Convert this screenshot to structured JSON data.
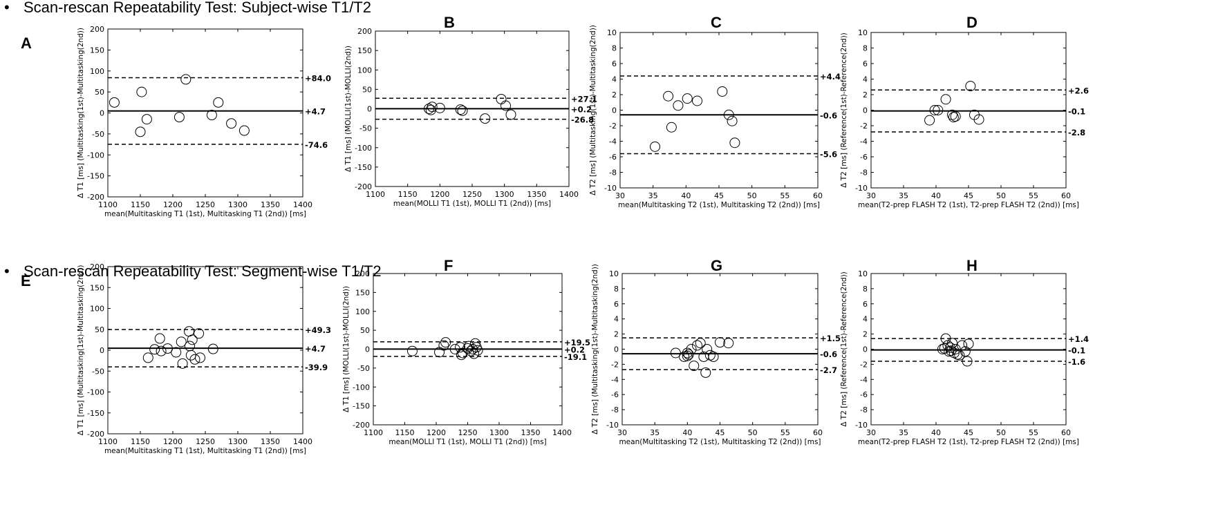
{
  "header": {
    "section1": "Scan-rescan Repeatability Test: Subject-wise T1/T2",
    "section2": "Scan-rescan Repeatability Test: Segment-wise T1/T2",
    "bullet": "•"
  },
  "colors": {
    "ink": "#000000",
    "background": "#ffffff"
  },
  "chart_data": [
    {
      "panel": "A",
      "type": "scatter",
      "xlabel": "mean(Multitasking T1 (1st), Multitasking T1 (2nd)) [ms]",
      "ylabel": "Δ T1 [ms] (Multitasking(1st)-Multitasking(2nd))",
      "xlim": [
        1100,
        1400
      ],
      "ylim": [
        -200,
        200
      ],
      "xticks": [
        1100,
        1150,
        1200,
        1250,
        1300,
        1350,
        1400
      ],
      "yticks": [
        -200,
        -150,
        -100,
        -50,
        0,
        50,
        100,
        150,
        200
      ],
      "x": [
        1110,
        1150,
        1152,
        1160,
        1210,
        1220,
        1260,
        1270,
        1290,
        1310
      ],
      "y": [
        25,
        -45,
        50,
        -15,
        -10,
        80,
        -5,
        25,
        -25,
        -42
      ],
      "mean_line": 4.7,
      "upper_loa": 84.0,
      "lower_loa": -74.6,
      "labels": {
        "mean": "+4.7",
        "upper": "+84.0",
        "lower": "-74.6"
      }
    },
    {
      "panel": "B",
      "type": "scatter",
      "xlabel": "mean(MOLLI T1 (1st), MOLLI T1 (2nd)) [ms]",
      "ylabel": "Δ T1 [ms] (MOLLI(1st)-MOLLI(2nd))",
      "xlim": [
        1100,
        1400
      ],
      "ylim": [
        -200,
        200
      ],
      "xticks": [
        1100,
        1150,
        1200,
        1250,
        1300,
        1350,
        1400
      ],
      "yticks": [
        -200,
        -150,
        -100,
        -50,
        0,
        50,
        100,
        150,
        200
      ],
      "x": [
        1183,
        1186,
        1188,
        1200,
        1232,
        1235,
        1270,
        1295,
        1302,
        1310
      ],
      "y": [
        0,
        -3,
        5,
        2,
        -2,
        -5,
        -25,
        25,
        8,
        -15
      ],
      "mean_line": 0.2,
      "upper_loa": 27.1,
      "lower_loa": -26.8,
      "labels": {
        "mean": "+0.2",
        "upper": "+27.1",
        "lower": "-26.8"
      }
    },
    {
      "panel": "C",
      "type": "scatter",
      "xlabel": "mean(Multitasking T2 (1st), Multitasking T2 (2nd)) [ms]",
      "ylabel": "Δ T2 [ms] (Multitasking(1st)-Multitasking(2nd))",
      "xlim": [
        30,
        60
      ],
      "ylim": [
        -10,
        10
      ],
      "xticks": [
        30,
        35,
        40,
        45,
        50,
        55,
        60
      ],
      "yticks": [
        -10,
        -8,
        -6,
        -4,
        -2,
        0,
        2,
        4,
        6,
        8,
        10
      ],
      "x": [
        35.3,
        37.3,
        37.8,
        38.8,
        40.2,
        41.7,
        45.5,
        46.5,
        47.0,
        47.4
      ],
      "y": [
        -4.7,
        1.8,
        -2.2,
        0.6,
        1.5,
        1.2,
        2.4,
        -0.6,
        -1.4,
        -4.2
      ],
      "mean_line": -0.6,
      "upper_loa": 4.4,
      "lower_loa": -5.6,
      "labels": {
        "mean": "-0.6",
        "upper": "+4.4",
        "lower": "-5.6"
      }
    },
    {
      "panel": "D",
      "type": "scatter",
      "xlabel": "mean(T2-prep FLASH T2 (1st), T2-prep FLASH T2 (2nd)) [ms]",
      "ylabel": "Δ T2 [ms] (Reference(1st)-Reference(2nd))",
      "xlim": [
        30,
        60
      ],
      "ylim": [
        -10,
        10
      ],
      "xticks": [
        30,
        35,
        40,
        45,
        50,
        55,
        60
      ],
      "yticks": [
        -10,
        -8,
        -6,
        -4,
        -2,
        0,
        2,
        4,
        6,
        8,
        10
      ],
      "x": [
        39.0,
        39.8,
        40.3,
        41.5,
        42.5,
        42.7,
        43.0,
        45.3,
        45.9,
        46.6
      ],
      "y": [
        -1.3,
        0.0,
        0.0,
        1.4,
        -0.6,
        -0.9,
        -0.8,
        3.1,
        -0.6,
        -1.2
      ],
      "mean_line": -0.1,
      "upper_loa": 2.6,
      "lower_loa": -2.8,
      "labels": {
        "mean": "-0.1",
        "upper": "+2.6",
        "lower": "-2.8"
      }
    },
    {
      "panel": "E",
      "type": "scatter",
      "xlabel": "mean(Multitasking T1 (1st), Multitasking T1 (2nd)) [ms]",
      "ylabel": "Δ T1 [ms] (Multitasking(1st)-Multitasking(2nd))",
      "xlim": [
        1100,
        1400
      ],
      "ylim": [
        -200,
        200
      ],
      "xticks": [
        1100,
        1150,
        1200,
        1250,
        1300,
        1350,
        1400
      ],
      "yticks": [
        -200,
        -150,
        -100,
        -50,
        0,
        50,
        100,
        150,
        200
      ],
      "x": [
        1162,
        1172,
        1180,
        1182,
        1192,
        1205,
        1213,
        1215,
        1225,
        1226,
        1228,
        1230,
        1234,
        1240,
        1242,
        1262
      ],
      "y": [
        -18,
        2,
        28,
        -2,
        4,
        -5,
        20,
        -32,
        45,
        10,
        -12,
        25,
        -22,
        40,
        -18,
        3
      ],
      "mean_line": 4.7,
      "upper_loa": 49.3,
      "lower_loa": -39.9,
      "labels": {
        "mean": "+4.7",
        "upper": "+49.3",
        "lower": "-39.9"
      }
    },
    {
      "panel": "F",
      "type": "scatter",
      "xlabel": "mean(MOLLI T1 (1st), MOLLI T1 (2nd)) [ms]",
      "ylabel": "Δ T1 [ms] (MOLLI(1st)-MOLLI(2nd))",
      "xlim": [
        1100,
        1400
      ],
      "ylim": [
        -200,
        200
      ],
      "xticks": [
        1100,
        1150,
        1200,
        1250,
        1300,
        1350,
        1400
      ],
      "yticks": [
        -200,
        -150,
        -100,
        -50,
        0,
        50,
        100,
        150,
        200
      ],
      "x": [
        1162,
        1205,
        1212,
        1215,
        1230,
        1238,
        1240,
        1242,
        1250,
        1252,
        1255,
        1258,
        1260,
        1262,
        1264,
        1266
      ],
      "y": [
        -5,
        -8,
        10,
        18,
        0,
        5,
        -15,
        -10,
        2,
        8,
        -5,
        0,
        -12,
        15,
        5,
        -3
      ],
      "mean_line": 0.2,
      "upper_loa": 19.5,
      "lower_loa": -19.1,
      "labels": {
        "mean": "+0.2",
        "upper": "+19.5",
        "lower": "-19.1"
      }
    },
    {
      "panel": "G",
      "type": "scatter",
      "xlabel": "mean(Multitasking T2 (1st), Multitasking T2 (2nd)) [ms]",
      "ylabel": "Δ T2 [ms] (Multitasking(1st)-Multitasking(2nd))",
      "xlim": [
        30,
        60
      ],
      "ylim": [
        -10,
        10
      ],
      "xticks": [
        30,
        35,
        40,
        45,
        50,
        55,
        60
      ],
      "yticks": [
        -10,
        -8,
        -6,
        -4,
        -2,
        0,
        2,
        4,
        6,
        8,
        10
      ],
      "x": [
        38.2,
        39.5,
        40.0,
        40.2,
        40.6,
        41.0,
        41.5,
        42.0,
        42.5,
        42.8,
        43.0,
        43.5,
        44.0,
        45.0,
        46.3,
        40.0
      ],
      "y": [
        -0.5,
        -1.0,
        -0.5,
        -0.7,
        0.0,
        -2.2,
        0.5,
        0.8,
        -1.0,
        -3.1,
        0.0,
        -0.8,
        -1.0,
        0.9,
        0.8,
        -0.9
      ],
      "mean_line": -0.6,
      "upper_loa": 1.5,
      "lower_loa": -2.7,
      "labels": {
        "mean": "-0.6",
        "upper": "+1.5",
        "lower": "-2.7"
      }
    },
    {
      "panel": "H",
      "type": "scatter",
      "xlabel": "mean(T2-prep FLASH T2 (1st), T2-prep FLASH T2 (2nd)) [ms]",
      "ylabel": "Δ T2 [ms] (Reference(1st)-Reference(2nd))",
      "xlim": [
        30,
        60
      ],
      "ylim": [
        -10,
        10
      ],
      "xticks": [
        30,
        35,
        40,
        45,
        50,
        55,
        60
      ],
      "yticks": [
        -10,
        -8,
        -6,
        -4,
        -2,
        0,
        2,
        4,
        6,
        8,
        10
      ],
      "x": [
        41.0,
        41.5,
        41.8,
        42.0,
        42.2,
        42.5,
        42.8,
        43.0,
        43.3,
        43.6,
        44.0,
        44.5,
        44.8,
        45.0,
        41.3,
        42.3
      ],
      "y": [
        0.0,
        1.4,
        0.5,
        -0.3,
        0.2,
        0.8,
        -0.5,
        0.0,
        -0.7,
        -0.8,
        0.5,
        -0.3,
        -1.6,
        0.7,
        0.1,
        -0.2
      ],
      "mean_line": -0.1,
      "upper_loa": 1.4,
      "lower_loa": -1.6,
      "labels": {
        "mean": "-0.1",
        "upper": "+1.4",
        "lower": "-1.6"
      }
    }
  ]
}
